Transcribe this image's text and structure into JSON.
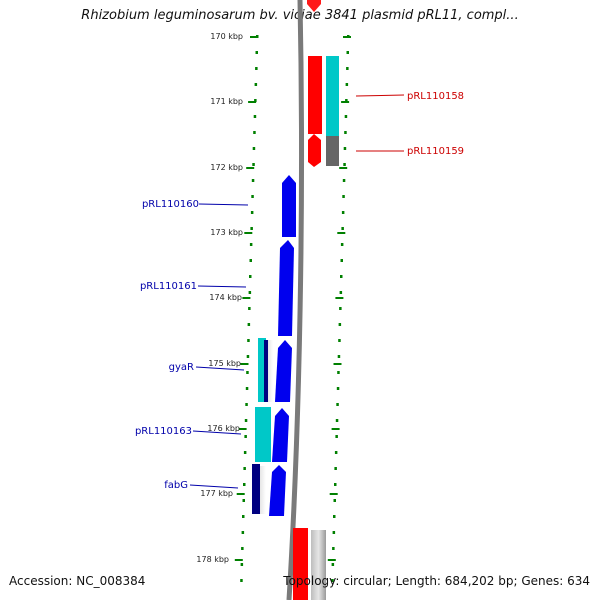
{
  "title": "Rhizobium leguminosarum bv. viciae 3841 plasmid pRL11, compl...",
  "footer": {
    "accession": "Accession: NC_008384",
    "stats": "Topology: circular; Length: 684,202 bp; Genes: 634"
  },
  "colors": {
    "forward_cds": "#ff0000",
    "reverse_cds": "#0000ee",
    "forward_feature_match": "#00c8c8",
    "reverse_feature_match": "#00c8c8",
    "forward_feature_dark": "#606060",
    "reverse_feature_dark": "#000080",
    "backbone": "#777777",
    "tick": "#008000",
    "label_forward": "#cc0000",
    "label_reverse": "#0000aa"
  },
  "scale_labels": [
    "170 kbp",
    "171 kbp",
    "172 kbp",
    "173 kbp",
    "174 kbp",
    "175 kbp",
    "176 kbp",
    "177 kbp",
    "178 kbp"
  ],
  "forward_genes": [
    {
      "name": "pRL110158"
    },
    {
      "name": "pRL110159"
    }
  ],
  "reverse_genes": [
    {
      "name": "pRL110160"
    },
    {
      "name": "pRL110161"
    },
    {
      "name": "gyaR"
    },
    {
      "name": "pRL110163"
    },
    {
      "name": "fabG"
    }
  ]
}
